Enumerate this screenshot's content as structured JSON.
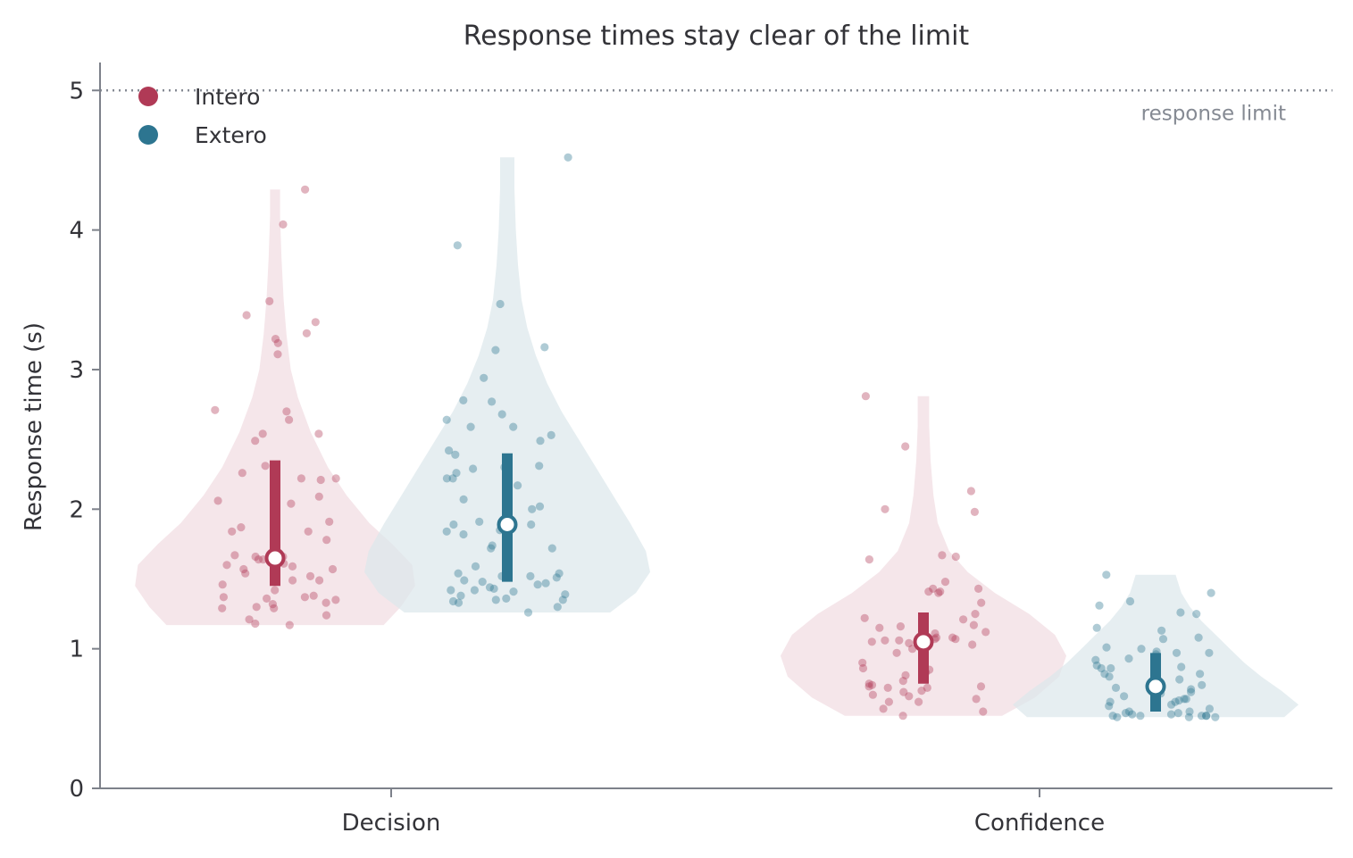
{
  "chart_data": {
    "type": "violin",
    "title": "Response times stay clear of the limit",
    "xlabel": "",
    "ylabel": "Response time (s)",
    "ylim": [
      0,
      5.2
    ],
    "yticks": [
      0,
      1,
      2,
      3,
      4,
      5
    ],
    "categories": [
      "Decision",
      "Confidence"
    ],
    "grid": false,
    "legend_position": "top-left",
    "reference_line": {
      "y": 5,
      "label": "response limit"
    },
    "series": [
      {
        "name": "Intero",
        "color": "#b03a56",
        "fill": "#f1dde2",
        "groups": [
          {
            "category": "Decision",
            "median": 1.65,
            "q1": 1.45,
            "q3": 2.35,
            "min": 1.17,
            "max": 4.29,
            "density": [
              [
                1.17,
                0.76
              ],
              [
                1.3,
                0.88
              ],
              [
                1.45,
                0.98
              ],
              [
                1.6,
                0.96
              ],
              [
                1.75,
                0.82
              ],
              [
                1.9,
                0.66
              ],
              [
                2.1,
                0.5
              ],
              [
                2.3,
                0.37
              ],
              [
                2.55,
                0.25
              ],
              [
                2.8,
                0.16
              ],
              [
                3.0,
                0.11
              ],
              [
                3.25,
                0.08
              ],
              [
                3.5,
                0.06
              ],
              [
                3.8,
                0.045
              ],
              [
                4.1,
                0.035
              ],
              [
                4.29,
                0.035
              ]
            ],
            "points": [
              4.29,
              4.04,
              3.49,
              3.39,
              3.34,
              3.26,
              3.22,
              3.19,
              3.11,
              2.71,
              2.7,
              2.64,
              2.54,
              2.54,
              2.49,
              2.31,
              2.26,
              2.22,
              2.22,
              2.21,
              2.09,
              2.06,
              2.04,
              1.91,
              1.87,
              1.84,
              1.84,
              1.78,
              1.67,
              1.66,
              1.66,
              1.64,
              1.64,
              1.61,
              1.6,
              1.59,
              1.57,
              1.57,
              1.54,
              1.52,
              1.49,
              1.49,
              1.46,
              1.42,
              1.38,
              1.37,
              1.37,
              1.36,
              1.35,
              1.33,
              1.32,
              1.3,
              1.29,
              1.29,
              1.24,
              1.21,
              1.18,
              1.17
            ]
          },
          {
            "category": "Confidence",
            "median": 1.05,
            "q1": 0.75,
            "q3": 1.26,
            "min": 0.52,
            "max": 2.81,
            "density": [
              [
                0.52,
                0.55
              ],
              [
                0.65,
                0.78
              ],
              [
                0.8,
                0.95
              ],
              [
                0.95,
                1.0
              ],
              [
                1.1,
                0.92
              ],
              [
                1.25,
                0.74
              ],
              [
                1.4,
                0.5
              ],
              [
                1.55,
                0.31
              ],
              [
                1.7,
                0.18
              ],
              [
                1.9,
                0.1
              ],
              [
                2.1,
                0.07
              ],
              [
                2.35,
                0.05
              ],
              [
                2.6,
                0.04
              ],
              [
                2.81,
                0.04
              ]
            ],
            "points": [
              2.81,
              2.45,
              2.13,
              2.0,
              1.98,
              1.67,
              1.66,
              1.64,
              1.48,
              1.43,
              1.43,
              1.41,
              1.41,
              1.4,
              1.33,
              1.25,
              1.22,
              1.21,
              1.17,
              1.16,
              1.15,
              1.12,
              1.11,
              1.08,
              1.08,
              1.07,
              1.07,
              1.06,
              1.06,
              1.05,
              1.04,
              1.03,
              1.0,
              0.97,
              0.9,
              0.86,
              0.85,
              0.83,
              0.81,
              0.77,
              0.75,
              0.74,
              0.73,
              0.73,
              0.72,
              0.72,
              0.7,
              0.69,
              0.67,
              0.66,
              0.64,
              0.62,
              0.62,
              0.57,
              0.55,
              0.52
            ]
          }
        ]
      },
      {
        "name": "Extero",
        "color": "#2d7590",
        "fill": "#dce8ec",
        "groups": [
          {
            "category": "Decision",
            "median": 1.89,
            "q1": 1.48,
            "q3": 2.4,
            "min": 1.26,
            "max": 4.52,
            "density": [
              [
                1.26,
                0.72
              ],
              [
                1.4,
                0.9
              ],
              [
                1.55,
                1.0
              ],
              [
                1.7,
                0.97
              ],
              [
                1.9,
                0.86
              ],
              [
                2.1,
                0.74
              ],
              [
                2.3,
                0.62
              ],
              [
                2.5,
                0.5
              ],
              [
                2.7,
                0.38
              ],
              [
                2.9,
                0.28
              ],
              [
                3.1,
                0.2
              ],
              [
                3.3,
                0.14
              ],
              [
                3.5,
                0.1
              ],
              [
                3.75,
                0.075
              ],
              [
                4.0,
                0.06
              ],
              [
                4.3,
                0.05
              ],
              [
                4.52,
                0.05
              ]
            ],
            "points": [
              4.52,
              3.89,
              3.47,
              3.16,
              3.14,
              2.94,
              2.78,
              2.77,
              2.68,
              2.64,
              2.59,
              2.59,
              2.53,
              2.49,
              2.42,
              2.39,
              2.31,
              2.3,
              2.29,
              2.26,
              2.22,
              2.22,
              2.17,
              2.07,
              2.02,
              2.0,
              1.91,
              1.89,
              1.89,
              1.85,
              1.84,
              1.82,
              1.74,
              1.72,
              1.72,
              1.59,
              1.54,
              1.54,
              1.52,
              1.52,
              1.51,
              1.49,
              1.48,
              1.47,
              1.46,
              1.44,
              1.43,
              1.42,
              1.42,
              1.41,
              1.39,
              1.38,
              1.36,
              1.35,
              1.35,
              1.34,
              1.33,
              1.3,
              1.26
            ]
          },
          {
            "category": "Confidence",
            "median": 0.73,
            "q1": 0.55,
            "q3": 0.97,
            "min": 0.51,
            "max": 1.53,
            "density": [
              [
                0.51,
                0.9
              ],
              [
                0.6,
                1.0
              ],
              [
                0.7,
                0.88
              ],
              [
                0.8,
                0.74
              ],
              [
                0.9,
                0.62
              ],
              [
                1.0,
                0.52
              ],
              [
                1.1,
                0.42
              ],
              [
                1.2,
                0.32
              ],
              [
                1.3,
                0.24
              ],
              [
                1.4,
                0.18
              ],
              [
                1.53,
                0.14
              ]
            ],
            "points": [
              1.53,
              1.4,
              1.34,
              1.31,
              1.26,
              1.25,
              1.15,
              1.13,
              1.08,
              1.07,
              1.01,
              1.0,
              0.98,
              0.97,
              0.97,
              0.96,
              0.93,
              0.92,
              0.88,
              0.87,
              0.86,
              0.86,
              0.82,
              0.82,
              0.8,
              0.78,
              0.74,
              0.72,
              0.71,
              0.69,
              0.68,
              0.66,
              0.64,
              0.64,
              0.63,
              0.62,
              0.62,
              0.6,
              0.59,
              0.57,
              0.55,
              0.55,
              0.54,
              0.54,
              0.53,
              0.53,
              0.52,
              0.52,
              0.52,
              0.52,
              0.52,
              0.51,
              0.51,
              0.51
            ]
          }
        ]
      }
    ]
  }
}
